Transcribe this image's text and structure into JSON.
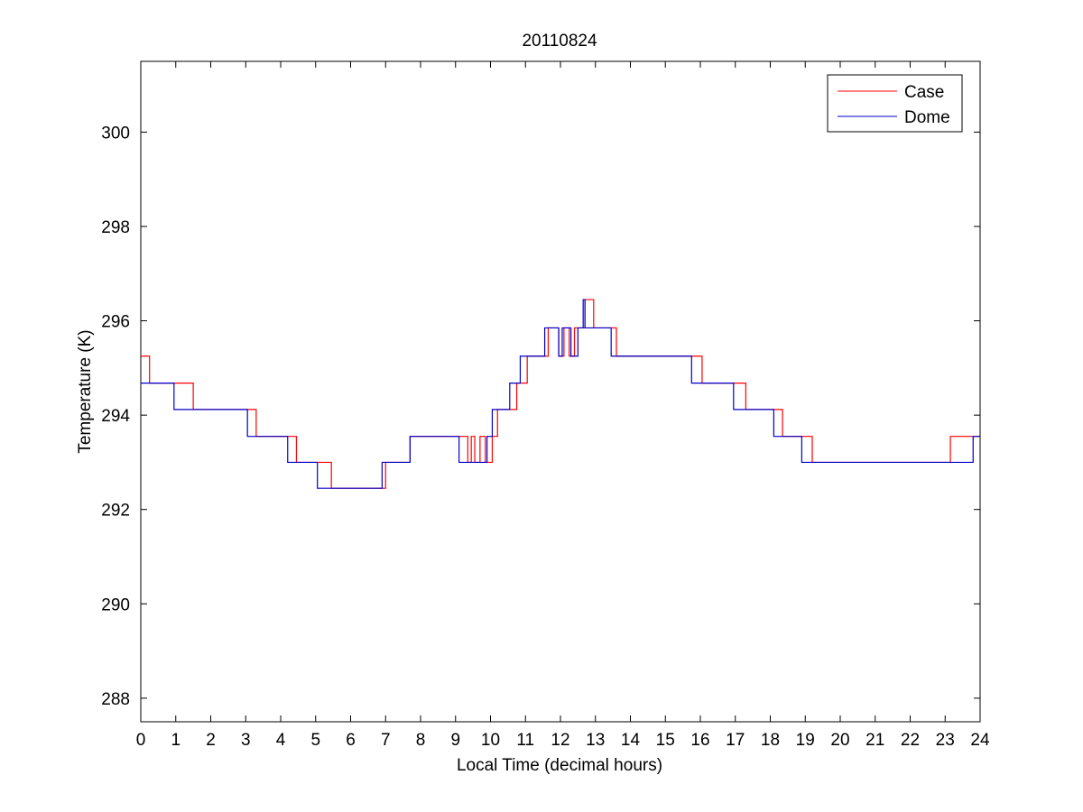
{
  "chart_data": {
    "type": "line",
    "title": "20110824",
    "xlabel": "Local Time (decimal hours)",
    "ylabel": "Temperature (K)",
    "xlim": [
      0,
      24
    ],
    "ylim": [
      287.5,
      301.5
    ],
    "xticks": [
      0,
      1,
      2,
      3,
      4,
      5,
      6,
      7,
      8,
      9,
      10,
      11,
      12,
      13,
      14,
      15,
      16,
      17,
      18,
      19,
      20,
      21,
      22,
      23,
      24
    ],
    "yticks": [
      288,
      290,
      292,
      294,
      296,
      298,
      300
    ],
    "grid": false,
    "legend_position": "top-right",
    "series": [
      {
        "name": "Case",
        "color": "#ff0000",
        "step": true,
        "points": [
          [
            0,
            295.25
          ],
          [
            0.25,
            294.68
          ],
          [
            1.5,
            294.12
          ],
          [
            3.3,
            293.55
          ],
          [
            4.45,
            293.0
          ],
          [
            5.45,
            292.45
          ],
          [
            7.0,
            293.0
          ],
          [
            7.7,
            293.55
          ],
          [
            9.35,
            293.0
          ],
          [
            9.45,
            293.55
          ],
          [
            9.55,
            293.0
          ],
          [
            9.7,
            293.55
          ],
          [
            9.85,
            293.0
          ],
          [
            10.05,
            293.55
          ],
          [
            10.2,
            294.12
          ],
          [
            10.75,
            294.68
          ],
          [
            11.05,
            295.25
          ],
          [
            11.65,
            295.85
          ],
          [
            11.95,
            295.25
          ],
          [
            12.1,
            295.85
          ],
          [
            12.25,
            295.25
          ],
          [
            12.4,
            295.85
          ],
          [
            12.7,
            296.45
          ],
          [
            12.95,
            295.85
          ],
          [
            13.6,
            295.25
          ],
          [
            16.05,
            294.68
          ],
          [
            17.3,
            294.12
          ],
          [
            18.35,
            293.55
          ],
          [
            19.2,
            293.0
          ],
          [
            23.15,
            293.55
          ],
          [
            24.0,
            293.55
          ]
        ]
      },
      {
        "name": "Dome",
        "color": "#0000cc",
        "step": true,
        "points": [
          [
            0,
            294.68
          ],
          [
            0.95,
            294.12
          ],
          [
            3.05,
            293.55
          ],
          [
            4.2,
            293.0
          ],
          [
            5.05,
            292.45
          ],
          [
            6.9,
            293.0
          ],
          [
            7.7,
            293.55
          ],
          [
            9.1,
            293.0
          ],
          [
            9.9,
            293.55
          ],
          [
            10.05,
            294.12
          ],
          [
            10.55,
            294.68
          ],
          [
            10.85,
            295.25
          ],
          [
            11.55,
            295.85
          ],
          [
            11.95,
            295.25
          ],
          [
            12.05,
            295.85
          ],
          [
            12.3,
            295.25
          ],
          [
            12.5,
            295.85
          ],
          [
            12.65,
            296.45
          ],
          [
            12.7,
            295.85
          ],
          [
            13.45,
            295.25
          ],
          [
            15.75,
            294.68
          ],
          [
            16.95,
            294.12
          ],
          [
            18.1,
            293.55
          ],
          [
            18.9,
            293.0
          ],
          [
            23.8,
            293.55
          ],
          [
            24.0,
            293.55
          ]
        ]
      }
    ]
  }
}
